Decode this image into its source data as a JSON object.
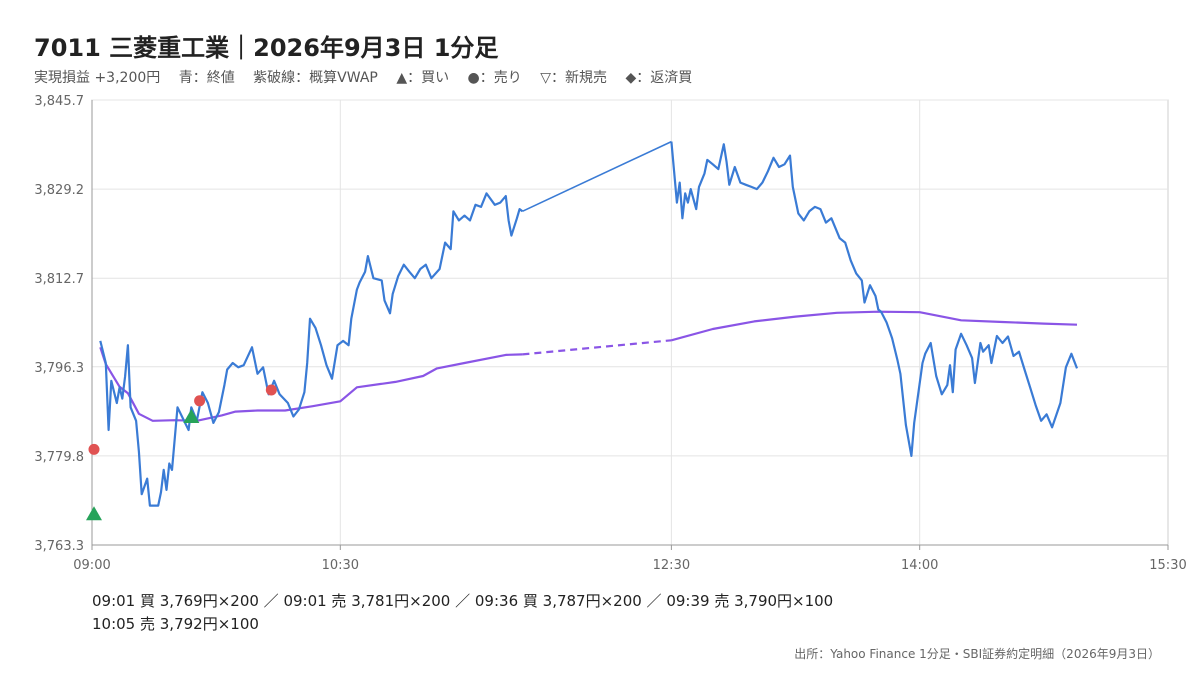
{
  "header": {
    "title": "7011 三菱重工業｜2026年9月3日 1分足",
    "subtitle": [
      "実現損益 +3,200円",
      "青：終値",
      "紫破線：概算VWAP",
      "▲：買い",
      "●：売り",
      "▽：新規売",
      "◆：返済買"
    ]
  },
  "colors": {
    "price": "#3a7bd5",
    "vwap": "#8a55e6",
    "buy": "#27a35a",
    "sell": "#e05252",
    "grid": "#e4e4e4",
    "axis": "#999999"
  },
  "chart_data": {
    "type": "line",
    "title": "7011 三菱重工業｜2026年9月3日 1分足",
    "xlabel": "",
    "ylabel": "",
    "x_ticks": [
      "09:00",
      "10:30",
      "12:30",
      "14:00",
      "15:30"
    ],
    "y_ticks": [
      "3,763.3",
      "3,779.8",
      "3,796.3",
      "3,812.7",
      "3,829.2",
      "3,845.7"
    ],
    "ylim": [
      3763.3,
      3845.7
    ],
    "grid": true,
    "series": [
      {
        "name": "終値",
        "style": "solid",
        "points": [
          [
            "09:03",
            3801.1
          ],
          [
            "09:05",
            3797.0
          ],
          [
            "09:06",
            3784.6
          ],
          [
            "09:07",
            3793.7
          ],
          [
            "09:09",
            3789.6
          ],
          [
            "09:10",
            3792.5
          ],
          [
            "09:11",
            3790.4
          ],
          [
            "09:12",
            3794.5
          ],
          [
            "09:13",
            3800.3
          ],
          [
            "09:14",
            3788.8
          ],
          [
            "09:16",
            3786.3
          ],
          [
            "09:17",
            3780.6
          ],
          [
            "09:18",
            3772.7
          ],
          [
            "09:20",
            3775.6
          ],
          [
            "09:21",
            3770.6
          ],
          [
            "09:24",
            3770.6
          ],
          [
            "09:25",
            3773.1
          ],
          [
            "09:26",
            3777.2
          ],
          [
            "09:27",
            3773.5
          ],
          [
            "09:28",
            3778.4
          ],
          [
            "09:29",
            3777.2
          ],
          [
            "09:31",
            3788.8
          ],
          [
            "09:33",
            3786.7
          ],
          [
            "09:35",
            3784.6
          ],
          [
            "09:36",
            3788.8
          ],
          [
            "09:38",
            3786.3
          ],
          [
            "09:40",
            3791.6
          ],
          [
            "09:42",
            3789.6
          ],
          [
            "09:44",
            3785.9
          ],
          [
            "09:46",
            3787.9
          ],
          [
            "09:48",
            3792.9
          ],
          [
            "09:49",
            3795.8
          ],
          [
            "09:51",
            3797.0
          ],
          [
            "09:53",
            3796.2
          ],
          [
            "09:55",
            3796.6
          ],
          [
            "09:58",
            3799.9
          ],
          [
            "10:00",
            3795.0
          ],
          [
            "10:02",
            3796.2
          ],
          [
            "10:04",
            3791.2
          ],
          [
            "10:06",
            3793.7
          ],
          [
            "10:08",
            3791.2
          ],
          [
            "10:11",
            3789.6
          ],
          [
            "10:13",
            3787.1
          ],
          [
            "10:15",
            3788.4
          ],
          [
            "10:17",
            3791.6
          ],
          [
            "10:18",
            3797.0
          ],
          [
            "10:19",
            3805.2
          ],
          [
            "10:21",
            3803.5
          ],
          [
            "10:23",
            3800.3
          ],
          [
            "10:25",
            3796.6
          ],
          [
            "10:27",
            3794.1
          ],
          [
            "10:29",
            3800.3
          ],
          [
            "10:31",
            3801.1
          ],
          [
            "10:33",
            3800.3
          ],
          [
            "10:34",
            3805.2
          ],
          [
            "10:36",
            3810.6
          ],
          [
            "10:37",
            3811.9
          ],
          [
            "10:39",
            3813.9
          ],
          [
            "10:40",
            3816.8
          ],
          [
            "10:42",
            3812.7
          ],
          [
            "10:45",
            3812.3
          ],
          [
            "10:46",
            3808.6
          ],
          [
            "10:48",
            3806.2
          ],
          [
            "10:49",
            3809.8
          ],
          [
            "10:51",
            3813.1
          ],
          [
            "10:53",
            3815.2
          ],
          [
            "10:55",
            3813.9
          ],
          [
            "10:57",
            3812.7
          ],
          [
            "10:59",
            3814.4
          ],
          [
            "11:01",
            3815.2
          ],
          [
            "11:03",
            3812.7
          ],
          [
            "11:06",
            3814.4
          ],
          [
            "11:08",
            3819.3
          ],
          [
            "11:10",
            3818.1
          ],
          [
            "11:11",
            3825.1
          ],
          [
            "11:13",
            3823.4
          ],
          [
            "11:15",
            3824.3
          ],
          [
            "11:17",
            3823.4
          ],
          [
            "11:19",
            3826.3
          ],
          [
            "11:21",
            3825.9
          ],
          [
            "11:23",
            3828.4
          ],
          [
            "11:26",
            3826.3
          ],
          [
            "11:28",
            3826.7
          ],
          [
            "11:30",
            3827.9
          ],
          [
            "11:31",
            3823.4
          ],
          [
            "11:32",
            3820.6
          ],
          [
            "11:34",
            3823.8
          ],
          [
            "11:35",
            3825.5
          ],
          [
            "11:36",
            3825.1
          ],
          [
            "12:30",
            3838.0
          ],
          [
            "12:31",
            3832.5
          ],
          [
            "12:32",
            3826.7
          ],
          [
            "12:33",
            3830.4
          ],
          [
            "12:34",
            3823.8
          ],
          [
            "12:35",
            3828.4
          ],
          [
            "12:36",
            3826.7
          ],
          [
            "12:37",
            3829.2
          ],
          [
            "12:39",
            3825.5
          ],
          [
            "12:40",
            3829.6
          ],
          [
            "12:42",
            3832.1
          ],
          [
            "12:43",
            3834.6
          ],
          [
            "12:45",
            3833.8
          ],
          [
            "12:47",
            3832.9
          ],
          [
            "12:49",
            3837.5
          ],
          [
            "12:50",
            3834.2
          ],
          [
            "12:51",
            3830.0
          ],
          [
            "12:53",
            3833.3
          ],
          [
            "12:55",
            3830.4
          ],
          [
            "12:57",
            3830.0
          ],
          [
            "12:59",
            3829.6
          ],
          [
            "13:01",
            3829.2
          ],
          [
            "13:03",
            3830.4
          ],
          [
            "13:05",
            3832.5
          ],
          [
            "13:07",
            3835.0
          ],
          [
            "13:09",
            3833.3
          ],
          [
            "13:11",
            3833.8
          ],
          [
            "13:13",
            3835.4
          ],
          [
            "13:14",
            3829.6
          ],
          [
            "13:16",
            3824.7
          ],
          [
            "13:18",
            3823.4
          ],
          [
            "13:20",
            3825.1
          ],
          [
            "13:22",
            3825.9
          ],
          [
            "13:24",
            3825.5
          ],
          [
            "13:26",
            3823.0
          ],
          [
            "13:28",
            3823.8
          ],
          [
            "13:31",
            3820.1
          ],
          [
            "13:33",
            3819.3
          ],
          [
            "13:35",
            3816.0
          ],
          [
            "13:37",
            3813.6
          ],
          [
            "13:39",
            3812.3
          ],
          [
            "13:40",
            3808.2
          ],
          [
            "13:42",
            3811.4
          ],
          [
            "13:44",
            3809.4
          ],
          [
            "13:45",
            3806.9
          ],
          [
            "13:46",
            3806.5
          ],
          [
            "13:48",
            3804.5
          ],
          [
            "13:50",
            3801.6
          ],
          [
            "13:52",
            3797.4
          ],
          [
            "13:53",
            3795.0
          ],
          [
            "13:55",
            3785.5
          ],
          [
            "13:57",
            3779.8
          ],
          [
            "13:58",
            3785.9
          ],
          [
            "14:01",
            3797.0
          ],
          [
            "14:02",
            3798.7
          ],
          [
            "14:04",
            3800.7
          ],
          [
            "14:06",
            3794.6
          ],
          [
            "14:08",
            3791.2
          ],
          [
            "14:10",
            3792.9
          ],
          [
            "14:11",
            3796.6
          ],
          [
            "14:12",
            3791.6
          ],
          [
            "14:13",
            3799.5
          ],
          [
            "14:15",
            3802.4
          ],
          [
            "14:17",
            3800.3
          ],
          [
            "14:19",
            3797.9
          ],
          [
            "14:20",
            3793.3
          ],
          [
            "14:22",
            3800.7
          ],
          [
            "14:23",
            3799.1
          ],
          [
            "14:25",
            3800.3
          ],
          [
            "14:26",
            3797.0
          ],
          [
            "14:28",
            3802.0
          ],
          [
            "14:30",
            3800.7
          ],
          [
            "14:32",
            3801.9
          ],
          [
            "14:34",
            3798.3
          ],
          [
            "14:36",
            3799.1
          ],
          [
            "14:38",
            3795.8
          ],
          [
            "14:40",
            3792.5
          ],
          [
            "14:42",
            3789.2
          ],
          [
            "14:44",
            3786.3
          ],
          [
            "14:46",
            3787.5
          ],
          [
            "14:48",
            3785.1
          ],
          [
            "14:51",
            3789.6
          ],
          [
            "14:53",
            3796.2
          ],
          [
            "14:55",
            3798.7
          ],
          [
            "14:57",
            3796.0
          ]
        ]
      },
      {
        "name": "概算VWAP",
        "style": "mixed",
        "points": [
          [
            "09:03",
            3799.9
          ],
          [
            "09:05",
            3796.8
          ],
          [
            "09:10",
            3792.6
          ],
          [
            "09:13",
            3791.4
          ],
          [
            "09:17",
            3787.6
          ],
          [
            "09:22",
            3786.3
          ],
          [
            "09:30",
            3786.4
          ],
          [
            "09:38",
            3786.3
          ],
          [
            "09:47",
            3787.3
          ],
          [
            "09:52",
            3788.0
          ],
          [
            "10:00",
            3788.2
          ],
          [
            "10:10",
            3788.2
          ],
          [
            "10:20",
            3789.0
          ],
          [
            "10:30",
            3789.9
          ],
          [
            "10:36",
            3792.5
          ],
          [
            "10:50",
            3793.5
          ],
          [
            "11:00",
            3794.6
          ],
          [
            "11:05",
            3796.0
          ],
          [
            "11:15",
            3797.0
          ],
          [
            "11:30",
            3798.5
          ],
          [
            "11:36",
            3798.6
          ],
          [
            "12:30",
            3801.2
          ],
          [
            "12:45",
            3803.3
          ],
          [
            "13:00",
            3804.7
          ],
          [
            "13:15",
            3805.6
          ],
          [
            "13:30",
            3806.3
          ],
          [
            "13:45",
            3806.5
          ],
          [
            "14:00",
            3806.4
          ],
          [
            "14:15",
            3804.9
          ],
          [
            "14:30",
            3804.6
          ],
          [
            "14:45",
            3804.3
          ],
          [
            "14:57",
            3804.1
          ]
        ]
      }
    ],
    "markers": [
      {
        "time": "09:00",
        "price": 3769.0,
        "type": "buy",
        "symbol": "▲"
      },
      {
        "time": "09:00",
        "price": 3781.0,
        "type": "sell",
        "symbol": "●"
      },
      {
        "time": "09:36",
        "price": 3787.0,
        "type": "buy",
        "symbol": "▲"
      },
      {
        "time": "09:39",
        "price": 3790.0,
        "type": "sell",
        "symbol": "●"
      },
      {
        "time": "10:05",
        "price": 3792.0,
        "type": "sell",
        "symbol": "●"
      }
    ],
    "lunch_gap": [
      "11:36",
      "12:30"
    ],
    "trades": [
      "09:01 買 3,769円×200 ／ 09:01 売 3,781円×200 ／ 09:36 買 3,787円×200 ／ 09:39 売 3,790円×100",
      "10:05 売 3,792円×100"
    ]
  },
  "footer": {
    "source": "出所：Yahoo Finance 1分足・SBI証券約定明細（2026年9月3日）"
  }
}
